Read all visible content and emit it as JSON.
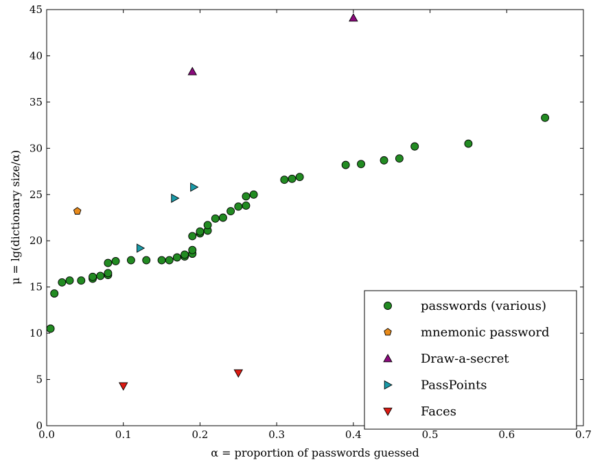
{
  "chart_data": {
    "type": "scatter",
    "title": "",
    "xlabel": "α = proportion of passwords guessed",
    "ylabel": "μ = lg(dictionary size/α)",
    "xlim": [
      0.0,
      0.7
    ],
    "ylim": [
      0,
      45
    ],
    "xticks": [
      0.0,
      0.1,
      0.2,
      0.3,
      0.4,
      0.5,
      0.6,
      0.7
    ],
    "xtick_labels": [
      "0.0",
      "0.1",
      "0.2",
      "0.3",
      "0.4",
      "0.5",
      "0.6",
      "0.7"
    ],
    "yticks": [
      0,
      5,
      10,
      15,
      20,
      25,
      30,
      35,
      40,
      45
    ],
    "ytick_labels": [
      "0",
      "5",
      "10",
      "15",
      "20",
      "25",
      "30",
      "35",
      "40",
      "45"
    ],
    "grid": false,
    "legend_position": "lower-right",
    "series": [
      {
        "name": "passwords (various)",
        "marker": "circle",
        "color": "#228b22",
        "points": [
          [
            0.005,
            10.5
          ],
          [
            0.01,
            14.3
          ],
          [
            0.02,
            15.5
          ],
          [
            0.03,
            15.7
          ],
          [
            0.045,
            15.7
          ],
          [
            0.06,
            15.9
          ],
          [
            0.06,
            16.1
          ],
          [
            0.07,
            16.2
          ],
          [
            0.08,
            16.3
          ],
          [
            0.08,
            16.5
          ],
          [
            0.08,
            17.6
          ],
          [
            0.09,
            17.8
          ],
          [
            0.11,
            17.9
          ],
          [
            0.13,
            17.9
          ],
          [
            0.15,
            17.9
          ],
          [
            0.16,
            17.9
          ],
          [
            0.17,
            18.2
          ],
          [
            0.18,
            18.3
          ],
          [
            0.18,
            18.5
          ],
          [
            0.19,
            18.6
          ],
          [
            0.19,
            19.0
          ],
          [
            0.19,
            20.5
          ],
          [
            0.2,
            20.8
          ],
          [
            0.2,
            21.0
          ],
          [
            0.21,
            21.1
          ],
          [
            0.21,
            21.7
          ],
          [
            0.22,
            22.4
          ],
          [
            0.23,
            22.5
          ],
          [
            0.24,
            23.2
          ],
          [
            0.25,
            23.7
          ],
          [
            0.26,
            23.8
          ],
          [
            0.26,
            24.8
          ],
          [
            0.27,
            25.0
          ],
          [
            0.31,
            26.6
          ],
          [
            0.32,
            26.7
          ],
          [
            0.33,
            26.9
          ],
          [
            0.39,
            28.2
          ],
          [
            0.41,
            28.3
          ],
          [
            0.44,
            28.7
          ],
          [
            0.46,
            28.9
          ],
          [
            0.48,
            30.2
          ],
          [
            0.55,
            30.5
          ],
          [
            0.65,
            33.3
          ]
        ]
      },
      {
        "name": "mnemonic password",
        "marker": "pentagon",
        "color": "#e88a1a",
        "points": [
          [
            0.04,
            23.2
          ]
        ]
      },
      {
        "name": "Draw-a-secret",
        "marker": "triangle-up",
        "color": "#8b0a7d",
        "points": [
          [
            0.19,
            38.3
          ],
          [
            0.4,
            44.1
          ]
        ]
      },
      {
        "name": "PassPoints",
        "marker": "triangle-right",
        "color": "#1a9aa8",
        "points": [
          [
            0.122,
            19.2
          ],
          [
            0.167,
            24.6
          ],
          [
            0.192,
            25.8
          ]
        ]
      },
      {
        "name": "Faces",
        "marker": "triangle-down",
        "color": "#dd1a12",
        "points": [
          [
            0.1,
            4.3
          ],
          [
            0.25,
            5.7
          ]
        ]
      }
    ]
  }
}
